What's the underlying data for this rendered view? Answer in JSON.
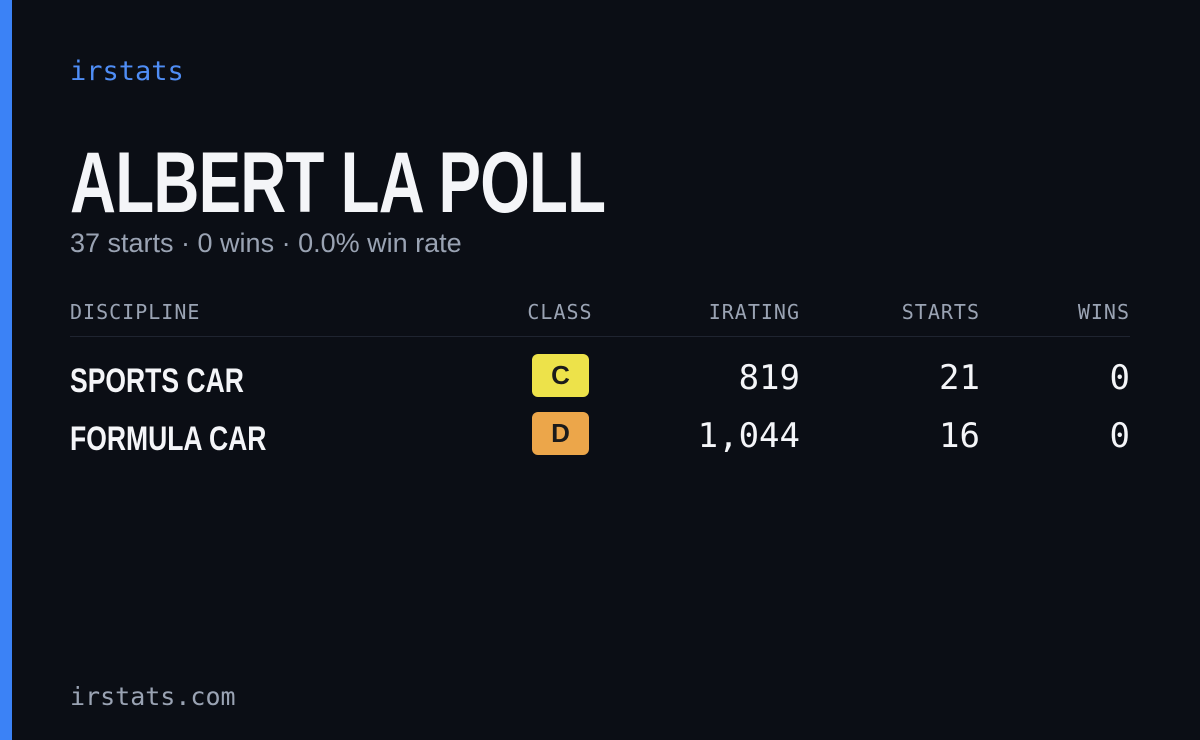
{
  "brand": "irstats",
  "header": {
    "name": "ALBERT LA POLL",
    "summary": "37 starts · 0 wins · 0.0% win rate"
  },
  "table": {
    "columns": [
      "DISCIPLINE",
      "CLASS",
      "IRATING",
      "STARTS",
      "WINS"
    ],
    "rows": [
      [
        "SPORTS CAR",
        "C",
        "819",
        "21",
        "0"
      ],
      [
        "FORMULA CAR",
        "D",
        "1,044",
        "16",
        "0"
      ]
    ]
  },
  "footer": "irstats.com"
}
